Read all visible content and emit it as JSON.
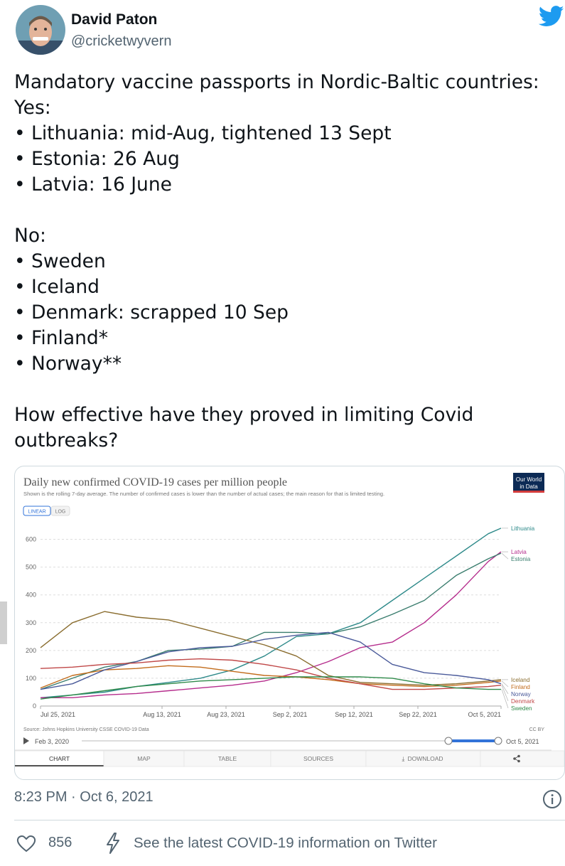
{
  "author": {
    "name": "David Paton",
    "handle": "@cricketwyvern"
  },
  "tweet": {
    "lines": [
      "Mandatory vaccine passports in Nordic-Baltic countries:",
      "Yes:",
      "• Lithuania: mid-Aug, tightened 13 Sept",
      "• Estonia: 26 Aug",
      "• Latvia: 16 June",
      "",
      "No:",
      "• Sweden",
      "• Iceland",
      "• Denmark: scrapped 10 Sep",
      "• Finland*",
      "• Norway**",
      "",
      "How effective have they proved in limiting Covid",
      "outbreaks?"
    ],
    "timestamp": "8:23 PM · Oct 6, 2021",
    "like_count": "856",
    "covid_link": "See the latest COVID-19 information on Twitter"
  },
  "embed": {
    "logo_line1": "Our World",
    "logo_line2": "in Data",
    "toggle_linear": "LINEAR",
    "toggle_log": "LOG",
    "source": "Source: Johns Hopkins University CSSE COVID-19 Data",
    "license": "CC BY",
    "timeline_start": "Feb 3, 2020",
    "timeline_end": "Oct 5, 2021",
    "tabs": [
      "CHART",
      "MAP",
      "TABLE",
      "SOURCES",
      "DOWNLOAD"
    ],
    "active_tab": "CHART"
  },
  "colors": {
    "Lithuania": "#2e8a8a",
    "Latvia": "#b52c8c",
    "Estonia": "#3a7d6e",
    "Finland": "#c26c1c",
    "Iceland": "#8a6d2f",
    "Norway": "#4a5a9a",
    "Denmark": "#c04848",
    "Sweden": "#2f8a4a",
    "accent": "#1d9bf0",
    "timeline": "#3273d9"
  },
  "chart_data": {
    "type": "line",
    "title": "Daily new confirmed COVID-19 cases per million people",
    "subtitle": "Shown is the rolling 7-day average. The number of confirmed cases is lower than the number of actual cases; the main reason for that is limited testing.",
    "x": [
      "2021-07-25",
      "2021-07-30",
      "2021-08-04",
      "2021-08-09",
      "2021-08-14",
      "2021-08-19",
      "2021-08-24",
      "2021-08-29",
      "2021-09-03",
      "2021-09-08",
      "2021-09-13",
      "2021-09-18",
      "2021-09-23",
      "2021-09-28",
      "2021-10-03",
      "2021-10-05"
    ],
    "x_tick_labels": [
      "Jul 25, 2021",
      "Aug 13, 2021",
      "Aug 23, 2021",
      "Sep 2, 2021",
      "Sep 12, 2021",
      "Sep 22, 2021",
      "Oct 5, 2021"
    ],
    "x_tick_dates": [
      "2021-07-25",
      "2021-08-13",
      "2021-08-23",
      "2021-09-02",
      "2021-09-12",
      "2021-09-22",
      "2021-10-05"
    ],
    "y_ticks": [
      0,
      100,
      200,
      300,
      400,
      500,
      600
    ],
    "ylim": [
      0,
      650
    ],
    "legend_placement": "right",
    "grid": true,
    "series": [
      {
        "name": "Lithuania",
        "values": [
          30,
          40,
          50,
          70,
          85,
          100,
          130,
          180,
          250,
          260,
          300,
          380,
          460,
          540,
          620,
          640
        ]
      },
      {
        "name": "Latvia",
        "values": [
          30,
          30,
          40,
          45,
          55,
          65,
          75,
          90,
          120,
          160,
          210,
          230,
          300,
          400,
          520,
          555
        ]
      },
      {
        "name": "Estonia",
        "values": [
          60,
          100,
          140,
          160,
          200,
          205,
          215,
          265,
          265,
          260,
          285,
          330,
          380,
          470,
          530,
          550
        ]
      },
      {
        "name": "Finland",
        "values": [
          65,
          110,
          130,
          135,
          145,
          140,
          125,
          110,
          105,
          95,
          80,
          75,
          70,
          75,
          85,
          90
        ]
      },
      {
        "name": "Iceland",
        "values": [
          210,
          300,
          340,
          320,
          310,
          280,
          250,
          220,
          180,
          110,
          85,
          80,
          75,
          80,
          90,
          95
        ]
      },
      {
        "name": "Norway",
        "values": [
          60,
          80,
          130,
          160,
          195,
          210,
          215,
          240,
          255,
          265,
          230,
          150,
          120,
          110,
          95,
          80
        ]
      },
      {
        "name": "Denmark",
        "values": [
          135,
          140,
          150,
          155,
          165,
          170,
          165,
          150,
          130,
          100,
          80,
          60,
          60,
          65,
          70,
          75
        ]
      },
      {
        "name": "Sweden",
        "values": [
          25,
          40,
          55,
          70,
          80,
          90,
          95,
          100,
          105,
          105,
          105,
          100,
          80,
          65,
          60,
          60
        ]
      }
    ]
  }
}
